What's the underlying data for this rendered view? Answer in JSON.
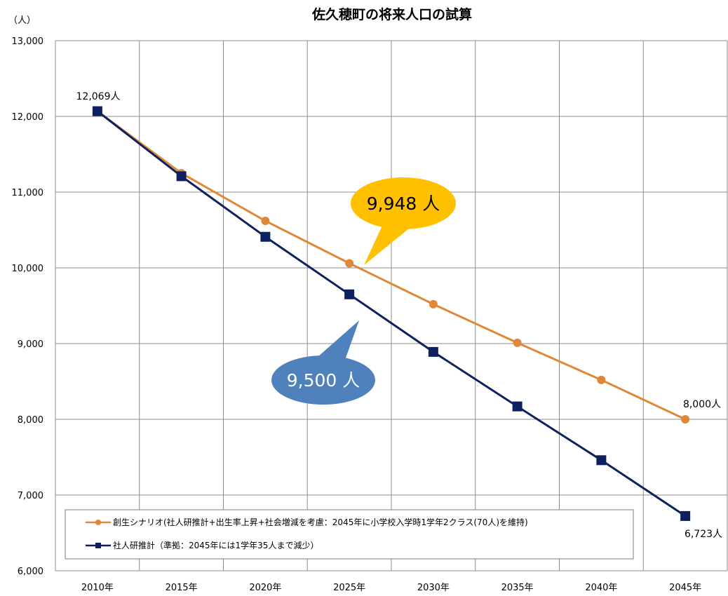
{
  "chart_data": {
    "type": "line",
    "title": "佐久穂町の将来人口の試算",
    "unit_label": "（人）",
    "categories": [
      "2010年",
      "2015年",
      "2020年",
      "2025年",
      "2030年",
      "2035年",
      "2040年",
      "2045年"
    ],
    "ylim": [
      6000,
      13000
    ],
    "yticks": [
      6000,
      7000,
      8000,
      9000,
      10000,
      11000,
      12000,
      13000
    ],
    "ytick_labels": [
      "6,000",
      "7,000",
      "8,000",
      "9,000",
      "10,000",
      "11,000",
      "12,000",
      "13,000"
    ],
    "grid": true,
    "legend_position": "bottom-left",
    "series": [
      {
        "name": "創生シナリオ(社人研推計+出生率上昇+社会増減を考慮：2045年に小学校入学時1学年2クラス(70人)を維持)",
        "color": "#E0883A",
        "marker": "circle",
        "values": [
          12069,
          11250,
          10620,
          10060,
          9520,
          9010,
          8520,
          8000
        ]
      },
      {
        "name": "社人研推計（準拠：2045年には1学年35人まで減少）",
        "color": "#0D2160",
        "marker": "square",
        "values": [
          12069,
          11210,
          10410,
          9650,
          8890,
          8170,
          7460,
          6723
        ]
      }
    ],
    "annotations": [
      {
        "text": "12,069人"
      },
      {
        "text": "8,000人"
      },
      {
        "text": "6,723人"
      }
    ],
    "callouts": [
      {
        "text": "9,948 人",
        "color": "#FFC000"
      },
      {
        "text": "9,500 人",
        "color": "#4F81BD"
      }
    ]
  }
}
